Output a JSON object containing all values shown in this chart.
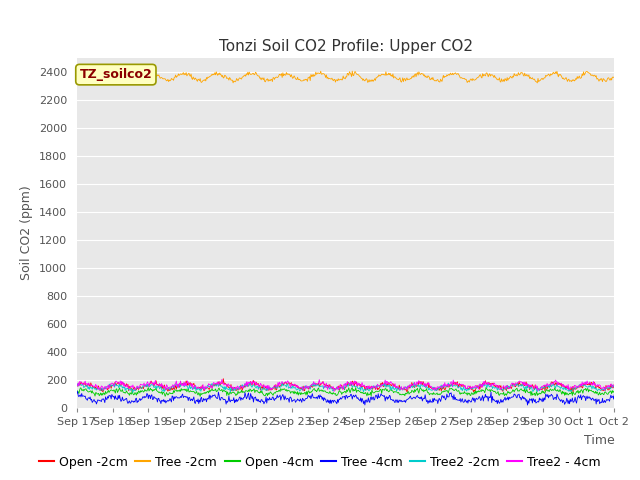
{
  "title": "Tonzi Soil CO2 Profile: Upper CO2",
  "ylabel": "Soil CO2 (ppm)",
  "xlabel": "Time",
  "xlim_days": 16,
  "ylim": [
    0,
    2500
  ],
  "yticks": [
    0,
    200,
    400,
    600,
    800,
    1000,
    1200,
    1400,
    1600,
    1800,
    2000,
    2200,
    2400
  ],
  "background_color": "#e8e8e8",
  "series": [
    {
      "label": "Open -2cm",
      "color": "#ff0000",
      "mean": 155,
      "amp": 20,
      "noise": 10,
      "freq": 1.0,
      "phase": 0.0
    },
    {
      "label": "Tree -2cm",
      "color": "#ffa500",
      "mean": 2360,
      "amp": 25,
      "noise": 8,
      "freq": 1.0,
      "phase": 0.3
    },
    {
      "label": "Open -4cm",
      "color": "#00cc00",
      "mean": 115,
      "amp": 15,
      "noise": 8,
      "freq": 1.0,
      "phase": 0.5
    },
    {
      "label": "Tree -4cm",
      "color": "#0000ff",
      "mean": 65,
      "amp": 18,
      "noise": 12,
      "freq": 1.0,
      "phase": 1.0
    },
    {
      "label": "Tree2 -2cm",
      "color": "#00cccc",
      "mean": 148,
      "amp": 15,
      "noise": 8,
      "freq": 1.0,
      "phase": 0.8
    },
    {
      "label": "Tree2 - 4cm",
      "color": "#ff00ff",
      "mean": 162,
      "amp": 17,
      "noise": 10,
      "freq": 1.0,
      "phase": 0.2
    }
  ],
  "xtick_labels": [
    "Sep 17",
    "Sep 18",
    "Sep 19",
    "Sep 20",
    "Sep 21",
    "Sep 22",
    "Sep 23",
    "Sep 24",
    "Sep 25",
    "Sep 26",
    "Sep 27",
    "Sep 28",
    "Sep 29",
    "Sep 30",
    "Oct 1",
    "Oct 2"
  ],
  "annotation_text": "TZ_soilco2",
  "annotation_color": "#8b0000",
  "annotation_bg": "#ffffc0",
  "annotation_border": "#999900",
  "title_fontsize": 11,
  "label_fontsize": 9,
  "tick_fontsize": 8,
  "legend_fontsize": 9
}
